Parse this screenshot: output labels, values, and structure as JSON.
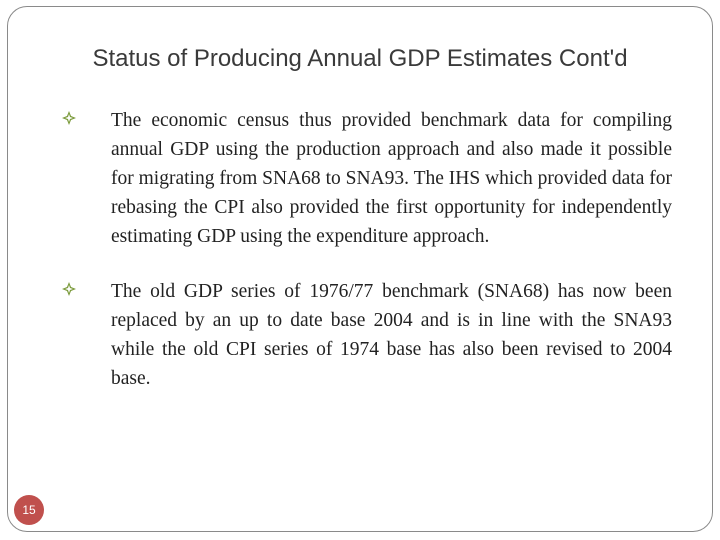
{
  "slide": {
    "title": "Status of Producing Annual GDP Estimates Cont'd",
    "page_number": "15",
    "accent_color": "#c0504d",
    "bullet_color": "#7a9a3a",
    "bullets": [
      {
        "icon": "diamond-bullet-icon",
        "text": "The economic census thus provided benchmark data for compiling annual GDP using the production approach and also made it possible for migrating from SNA68 to SNA93. The IHS which provided data for rebasing the CPI also provided the first opportunity for independently estimating GDP using the expenditure approach."
      },
      {
        "icon": "diamond-bullet-icon",
        "text": "The old GDP series of 1976/77 benchmark (SNA68) has now been replaced by an up to date base 2004 and is in line with the SNA93 while the old CPI series of 1974 base has also been revised to 2004 base."
      }
    ]
  }
}
